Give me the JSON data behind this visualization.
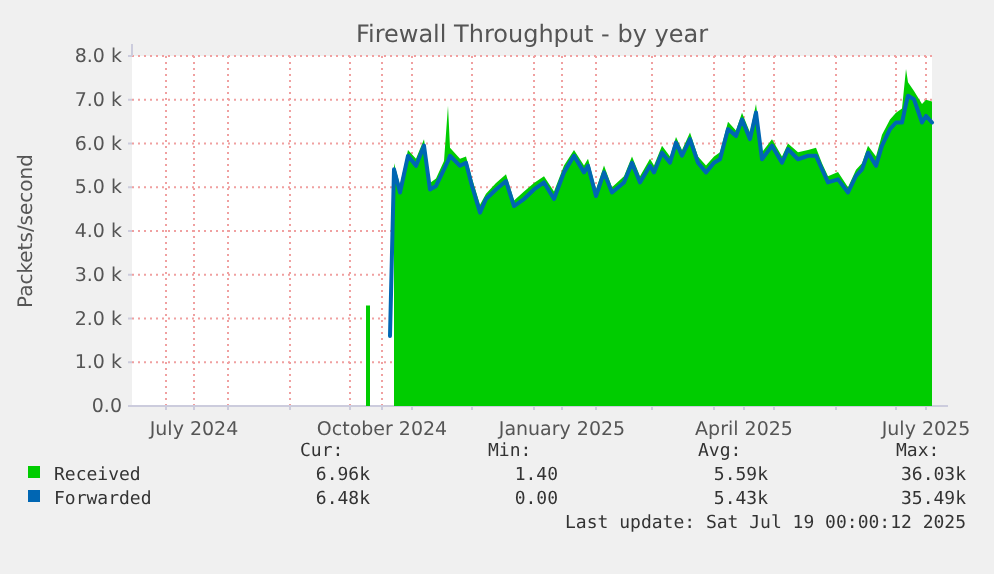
{
  "chart_data": {
    "type": "area",
    "title": "Firewall Throughput - by year",
    "ylabel": "Packets/second",
    "x": [
      "2024-10-09",
      "2024-10-11",
      "2024-10-21",
      "2024-10-23",
      "2024-10-26",
      "2024-10-30",
      "2024-11-03",
      "2024-11-07",
      "2024-11-10",
      "2024-11-13",
      "2024-11-17",
      "2024-11-19",
      "2024-11-20",
      "2024-11-25",
      "2024-11-28",
      "2024-12-01",
      "2024-12-05",
      "2024-12-08",
      "2024-12-13",
      "2024-12-18",
      "2024-12-22",
      "2024-12-27",
      "2025-01-01",
      "2025-01-06",
      "2025-01-11",
      "2025-01-16",
      "2025-01-21",
      "2025-01-26",
      "2025-01-28",
      "2025-02-01",
      "2025-02-05",
      "2025-02-09",
      "2025-02-15",
      "2025-02-19",
      "2025-02-23",
      "2025-02-28",
      "2025-03-02",
      "2025-03-06",
      "2025-03-10",
      "2025-03-13",
      "2025-03-16",
      "2025-03-20",
      "2025-03-24",
      "2025-03-28",
      "2025-04-01",
      "2025-04-04",
      "2025-04-08",
      "2025-04-12",
      "2025-04-15",
      "2025-04-19",
      "2025-04-22",
      "2025-04-25",
      "2025-04-30",
      "2025-05-05",
      "2025-05-08",
      "2025-05-13",
      "2025-05-18",
      "2025-05-22",
      "2025-05-25",
      "2025-05-28",
      "2025-06-02",
      "2025-06-07",
      "2025-06-11",
      "2025-06-14",
      "2025-06-17",
      "2025-06-21",
      "2025-06-24",
      "2025-06-28",
      "2025-07-01",
      "2025-07-04",
      "2025-07-06",
      "2025-07-07",
      "2025-07-10",
      "2025-07-14",
      "2025-07-16",
      "2025-07-19"
    ],
    "series": [
      {
        "name": "Received",
        "color": "#00cc00",
        "values": [
          2300,
          2300,
          null,
          5550,
          5050,
          5850,
          5650,
          6100,
          5100,
          5200,
          5600,
          6860,
          5900,
          5650,
          5700,
          5200,
          4600,
          4850,
          5100,
          5300,
          4700,
          4900,
          5100,
          5250,
          4900,
          5500,
          5850,
          5500,
          5650,
          4950,
          5500,
          5000,
          5250,
          5700,
          5250,
          5650,
          5500,
          5950,
          5700,
          6150,
          5850,
          6250,
          5700,
          5500,
          5700,
          5800,
          6500,
          6300,
          6700,
          6250,
          6900,
          5800,
          6100,
          5700,
          6000,
          5800,
          5850,
          5900,
          5550,
          5250,
          5350,
          5000,
          5400,
          5550,
          5950,
          5700,
          6200,
          6550,
          6700,
          6800,
          7700,
          7400,
          7200,
          6900,
          7000,
          6960
        ]
      },
      {
        "name": "Forwarded",
        "type": "line",
        "color": "#0066b3",
        "values": [
          null,
          null,
          1600,
          5410,
          4880,
          5720,
          5490,
          5950,
          4950,
          5030,
          5410,
          5600,
          5720,
          5490,
          5560,
          5030,
          4420,
          4730,
          4950,
          5140,
          4570,
          4730,
          4950,
          5110,
          4730,
          5340,
          5720,
          5340,
          5490,
          4800,
          5340,
          4880,
          5110,
          5560,
          5110,
          5490,
          5340,
          5790,
          5560,
          6020,
          5720,
          6100,
          5560,
          5340,
          5560,
          5640,
          6330,
          6170,
          6550,
          6100,
          6710,
          5640,
          5950,
          5560,
          5870,
          5640,
          5720,
          5720,
          5410,
          5110,
          5180,
          4880,
          5260,
          5410,
          5790,
          5490,
          5950,
          6330,
          6480,
          6480,
          6900,
          7090,
          7010,
          6480,
          6630,
          6480
        ]
      }
    ],
    "xlim": [
      "2024-06-14",
      "2025-07-19"
    ],
    "xticks": [
      {
        "value": "2024-07-01",
        "label": null
      },
      {
        "value": "2024-07-15",
        "label": "July 2024"
      },
      {
        "value": "2024-08-01",
        "label": null
      },
      {
        "value": "2024-09-01",
        "label": null
      },
      {
        "value": "2024-10-01",
        "label": null
      },
      {
        "value": "2024-10-17",
        "label": "October 2024"
      },
      {
        "value": "2024-11-01",
        "label": null
      },
      {
        "value": "2024-12-01",
        "label": null
      },
      {
        "value": "2025-01-01",
        "label": null
      },
      {
        "value": "2025-01-15",
        "label": "January 2025"
      },
      {
        "value": "2025-02-01",
        "label": null
      },
      {
        "value": "2025-03-01",
        "label": null
      },
      {
        "value": "2025-04-01",
        "label": null
      },
      {
        "value": "2025-04-16",
        "label": "April 2025"
      },
      {
        "value": "2025-05-01",
        "label": null
      },
      {
        "value": "2025-06-01",
        "label": null
      },
      {
        "value": "2025-07-01",
        "label": null
      },
      {
        "value": "2025-07-16",
        "label": "July 2025"
      }
    ],
    "ylim": [
      0,
      8000
    ],
    "yticks": [
      {
        "value": 0,
        "label": "0.0"
      },
      {
        "value": 1000,
        "label": "1.0 k"
      },
      {
        "value": 2000,
        "label": "2.0 k"
      },
      {
        "value": 3000,
        "label": "3.0 k"
      },
      {
        "value": 4000,
        "label": "4.0 k"
      },
      {
        "value": 5000,
        "label": "5.0 k"
      },
      {
        "value": 6000,
        "label": "6.0 k"
      },
      {
        "value": 7000,
        "label": "7.0 k"
      },
      {
        "value": 8000,
        "label": "8.0 k"
      }
    ],
    "grid": true,
    "legend": "bottom",
    "annotations": [
      "Cur:",
      "Min:",
      "Avg:",
      "Max:",
      "6.96k",
      "1.40",
      "5.59k",
      "36.03k",
      "6.48k",
      "0.00",
      "5.43k",
      "35.49k",
      "Last update: Sat Jul 19 00:00:12 2025"
    ]
  }
}
